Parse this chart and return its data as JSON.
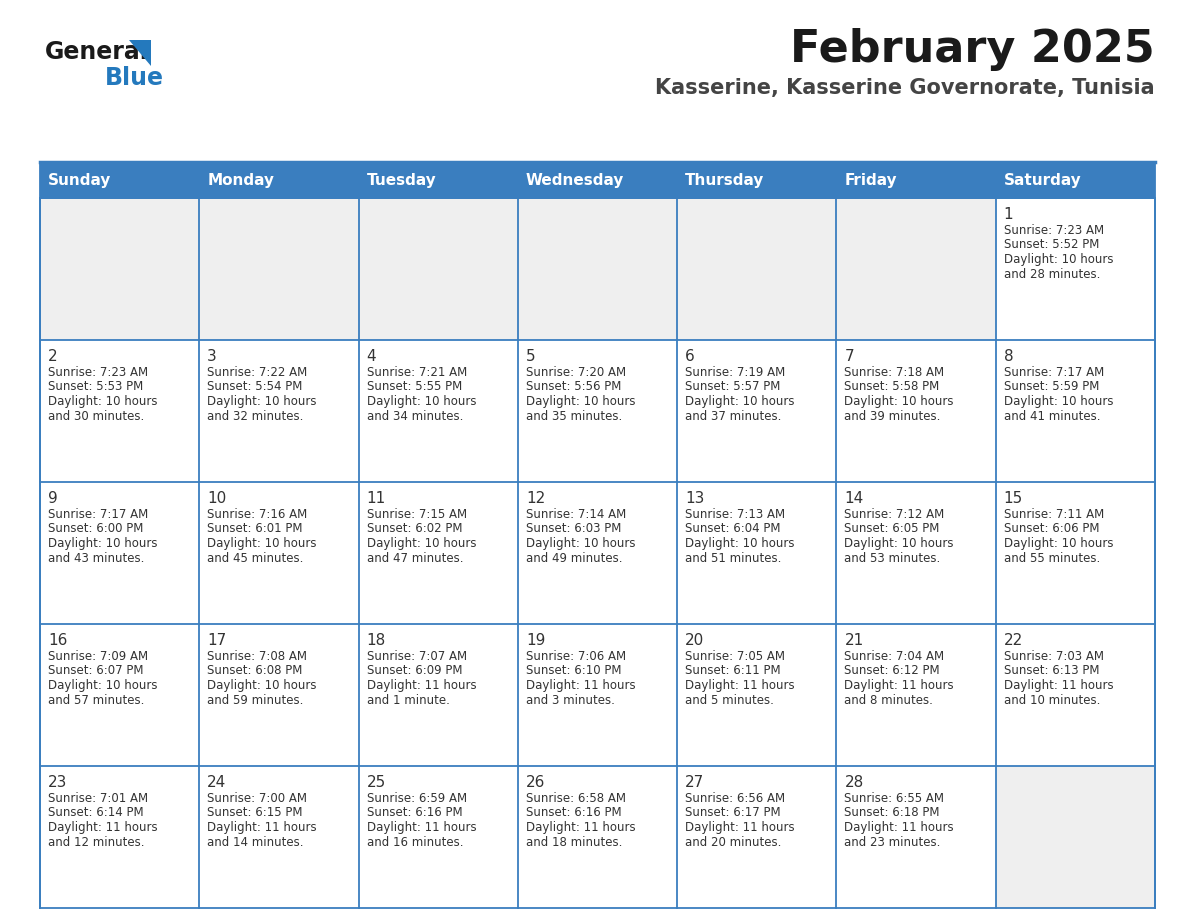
{
  "title": "February 2025",
  "subtitle": "Kasserine, Kasserine Governorate, Tunisia",
  "header_bg": "#3A7EBF",
  "header_text": "#FFFFFF",
  "cell_bg_gray": "#EFEFEF",
  "cell_bg_white": "#FFFFFF",
  "border_color": "#3A7EBF",
  "text_color": "#333333",
  "days_of_week": [
    "Sunday",
    "Monday",
    "Tuesday",
    "Wednesday",
    "Thursday",
    "Friday",
    "Saturday"
  ],
  "calendar_data": [
    [
      null,
      null,
      null,
      null,
      null,
      null,
      {
        "day": 1,
        "sunrise": "7:23 AM",
        "sunset": "5:52 PM",
        "daylight_line1": "Daylight: 10 hours",
        "daylight_line2": "and 28 minutes."
      }
    ],
    [
      {
        "day": 2,
        "sunrise": "7:23 AM",
        "sunset": "5:53 PM",
        "daylight_line1": "Daylight: 10 hours",
        "daylight_line2": "and 30 minutes."
      },
      {
        "day": 3,
        "sunrise": "7:22 AM",
        "sunset": "5:54 PM",
        "daylight_line1": "Daylight: 10 hours",
        "daylight_line2": "and 32 minutes."
      },
      {
        "day": 4,
        "sunrise": "7:21 AM",
        "sunset": "5:55 PM",
        "daylight_line1": "Daylight: 10 hours",
        "daylight_line2": "and 34 minutes."
      },
      {
        "day": 5,
        "sunrise": "7:20 AM",
        "sunset": "5:56 PM",
        "daylight_line1": "Daylight: 10 hours",
        "daylight_line2": "and 35 minutes."
      },
      {
        "day": 6,
        "sunrise": "7:19 AM",
        "sunset": "5:57 PM",
        "daylight_line1": "Daylight: 10 hours",
        "daylight_line2": "and 37 minutes."
      },
      {
        "day": 7,
        "sunrise": "7:18 AM",
        "sunset": "5:58 PM",
        "daylight_line1": "Daylight: 10 hours",
        "daylight_line2": "and 39 minutes."
      },
      {
        "day": 8,
        "sunrise": "7:17 AM",
        "sunset": "5:59 PM",
        "daylight_line1": "Daylight: 10 hours",
        "daylight_line2": "and 41 minutes."
      }
    ],
    [
      {
        "day": 9,
        "sunrise": "7:17 AM",
        "sunset": "6:00 PM",
        "daylight_line1": "Daylight: 10 hours",
        "daylight_line2": "and 43 minutes."
      },
      {
        "day": 10,
        "sunrise": "7:16 AM",
        "sunset": "6:01 PM",
        "daylight_line1": "Daylight: 10 hours",
        "daylight_line2": "and 45 minutes."
      },
      {
        "day": 11,
        "sunrise": "7:15 AM",
        "sunset": "6:02 PM",
        "daylight_line1": "Daylight: 10 hours",
        "daylight_line2": "and 47 minutes."
      },
      {
        "day": 12,
        "sunrise": "7:14 AM",
        "sunset": "6:03 PM",
        "daylight_line1": "Daylight: 10 hours",
        "daylight_line2": "and 49 minutes."
      },
      {
        "day": 13,
        "sunrise": "7:13 AM",
        "sunset": "6:04 PM",
        "daylight_line1": "Daylight: 10 hours",
        "daylight_line2": "and 51 minutes."
      },
      {
        "day": 14,
        "sunrise": "7:12 AM",
        "sunset": "6:05 PM",
        "daylight_line1": "Daylight: 10 hours",
        "daylight_line2": "and 53 minutes."
      },
      {
        "day": 15,
        "sunrise": "7:11 AM",
        "sunset": "6:06 PM",
        "daylight_line1": "Daylight: 10 hours",
        "daylight_line2": "and 55 minutes."
      }
    ],
    [
      {
        "day": 16,
        "sunrise": "7:09 AM",
        "sunset": "6:07 PM",
        "daylight_line1": "Daylight: 10 hours",
        "daylight_line2": "and 57 minutes."
      },
      {
        "day": 17,
        "sunrise": "7:08 AM",
        "sunset": "6:08 PM",
        "daylight_line1": "Daylight: 10 hours",
        "daylight_line2": "and 59 minutes."
      },
      {
        "day": 18,
        "sunrise": "7:07 AM",
        "sunset": "6:09 PM",
        "daylight_line1": "Daylight: 11 hours",
        "daylight_line2": "and 1 minute."
      },
      {
        "day": 19,
        "sunrise": "7:06 AM",
        "sunset": "6:10 PM",
        "daylight_line1": "Daylight: 11 hours",
        "daylight_line2": "and 3 minutes."
      },
      {
        "day": 20,
        "sunrise": "7:05 AM",
        "sunset": "6:11 PM",
        "daylight_line1": "Daylight: 11 hours",
        "daylight_line2": "and 5 minutes."
      },
      {
        "day": 21,
        "sunrise": "7:04 AM",
        "sunset": "6:12 PM",
        "daylight_line1": "Daylight: 11 hours",
        "daylight_line2": "and 8 minutes."
      },
      {
        "day": 22,
        "sunrise": "7:03 AM",
        "sunset": "6:13 PM",
        "daylight_line1": "Daylight: 11 hours",
        "daylight_line2": "and 10 minutes."
      }
    ],
    [
      {
        "day": 23,
        "sunrise": "7:01 AM",
        "sunset": "6:14 PM",
        "daylight_line1": "Daylight: 11 hours",
        "daylight_line2": "and 12 minutes."
      },
      {
        "day": 24,
        "sunrise": "7:00 AM",
        "sunset": "6:15 PM",
        "daylight_line1": "Daylight: 11 hours",
        "daylight_line2": "and 14 minutes."
      },
      {
        "day": 25,
        "sunrise": "6:59 AM",
        "sunset": "6:16 PM",
        "daylight_line1": "Daylight: 11 hours",
        "daylight_line2": "and 16 minutes."
      },
      {
        "day": 26,
        "sunrise": "6:58 AM",
        "sunset": "6:16 PM",
        "daylight_line1": "Daylight: 11 hours",
        "daylight_line2": "and 18 minutes."
      },
      {
        "day": 27,
        "sunrise": "6:56 AM",
        "sunset": "6:17 PM",
        "daylight_line1": "Daylight: 11 hours",
        "daylight_line2": "and 20 minutes."
      },
      {
        "day": 28,
        "sunrise": "6:55 AM",
        "sunset": "6:18 PM",
        "daylight_line1": "Daylight: 11 hours",
        "daylight_line2": "and 23 minutes."
      },
      null
    ]
  ],
  "logo_text1": "General",
  "logo_text2": "Blue",
  "logo_color1": "#1a1a1a",
  "logo_color2": "#2479BD",
  "logo_triangle_color": "#2479BD",
  "title_fontsize": 32,
  "subtitle_fontsize": 15,
  "header_fontsize": 11,
  "day_num_fontsize": 11,
  "cell_text_fontsize": 8.5
}
